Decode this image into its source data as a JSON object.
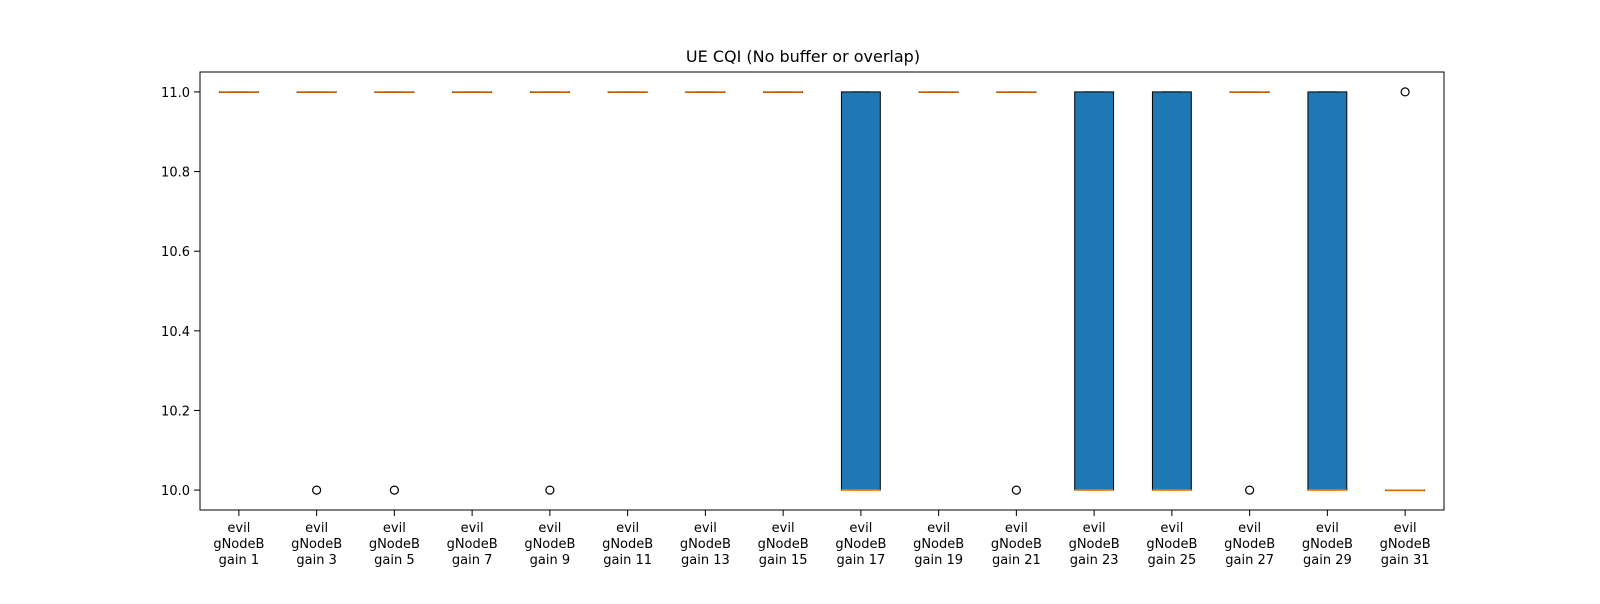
{
  "chart_data": {
    "type": "box",
    "title": "UE CQI (No buffer or overlap)",
    "xlabel": "",
    "ylabel": "",
    "ylim": [
      9.95,
      11.05
    ],
    "yticks": [
      10.0,
      10.2,
      10.4,
      10.6,
      10.8,
      11.0
    ],
    "ytick_labels": [
      "10.0",
      "10.2",
      "10.4",
      "10.6",
      "10.8",
      "11.0"
    ],
    "grid": false,
    "box_color": "#1f77b4",
    "median_color": "#ff7f0e",
    "categories": [
      "evil\ngNodeB\ngain 1",
      "evil\ngNodeB\ngain 3",
      "evil\ngNodeB\ngain 5",
      "evil\ngNodeB\ngain 7",
      "evil\ngNodeB\ngain 9",
      "evil\ngNodeB\ngain 11",
      "evil\ngNodeB\ngain 13",
      "evil\ngNodeB\ngain 15",
      "evil\ngNodeB\ngain 17",
      "evil\ngNodeB\ngain 19",
      "evil\ngNodeB\ngain 21",
      "evil\ngNodeB\ngain 23",
      "evil\ngNodeB\ngain 25",
      "evil\ngNodeB\ngain 27",
      "evil\ngNodeB\ngain 29",
      "evil\ngNodeB\ngain 31"
    ],
    "boxes": [
      {
        "q1": 11.0,
        "median": 11.0,
        "q3": 11.0,
        "whisker_low": 11.0,
        "whisker_high": 11.0,
        "outliers": []
      },
      {
        "q1": 11.0,
        "median": 11.0,
        "q3": 11.0,
        "whisker_low": 11.0,
        "whisker_high": 11.0,
        "outliers": [
          10.0
        ]
      },
      {
        "q1": 11.0,
        "median": 11.0,
        "q3": 11.0,
        "whisker_low": 11.0,
        "whisker_high": 11.0,
        "outliers": [
          10.0
        ]
      },
      {
        "q1": 11.0,
        "median": 11.0,
        "q3": 11.0,
        "whisker_low": 11.0,
        "whisker_high": 11.0,
        "outliers": []
      },
      {
        "q1": 11.0,
        "median": 11.0,
        "q3": 11.0,
        "whisker_low": 11.0,
        "whisker_high": 11.0,
        "outliers": [
          10.0
        ]
      },
      {
        "q1": 11.0,
        "median": 11.0,
        "q3": 11.0,
        "whisker_low": 11.0,
        "whisker_high": 11.0,
        "outliers": []
      },
      {
        "q1": 11.0,
        "median": 11.0,
        "q3": 11.0,
        "whisker_low": 11.0,
        "whisker_high": 11.0,
        "outliers": []
      },
      {
        "q1": 11.0,
        "median": 11.0,
        "q3": 11.0,
        "whisker_low": 11.0,
        "whisker_high": 11.0,
        "outliers": []
      },
      {
        "q1": 10.0,
        "median": 10.0,
        "q3": 11.0,
        "whisker_low": 10.0,
        "whisker_high": 11.0,
        "outliers": []
      },
      {
        "q1": 11.0,
        "median": 11.0,
        "q3": 11.0,
        "whisker_low": 11.0,
        "whisker_high": 11.0,
        "outliers": []
      },
      {
        "q1": 11.0,
        "median": 11.0,
        "q3": 11.0,
        "whisker_low": 11.0,
        "whisker_high": 11.0,
        "outliers": [
          10.0
        ]
      },
      {
        "q1": 10.0,
        "median": 10.0,
        "q3": 11.0,
        "whisker_low": 10.0,
        "whisker_high": 11.0,
        "outliers": []
      },
      {
        "q1": 10.0,
        "median": 10.0,
        "q3": 11.0,
        "whisker_low": 10.0,
        "whisker_high": 11.0,
        "outliers": []
      },
      {
        "q1": 11.0,
        "median": 11.0,
        "q3": 11.0,
        "whisker_low": 11.0,
        "whisker_high": 11.0,
        "outliers": [
          10.0
        ]
      },
      {
        "q1": 10.0,
        "median": 10.0,
        "q3": 11.0,
        "whisker_low": 10.0,
        "whisker_high": 11.0,
        "outliers": []
      },
      {
        "q1": 10.0,
        "median": 10.0,
        "q3": 10.0,
        "whisker_low": 10.0,
        "whisker_high": 10.0,
        "outliers": [
          11.0
        ]
      }
    ]
  }
}
